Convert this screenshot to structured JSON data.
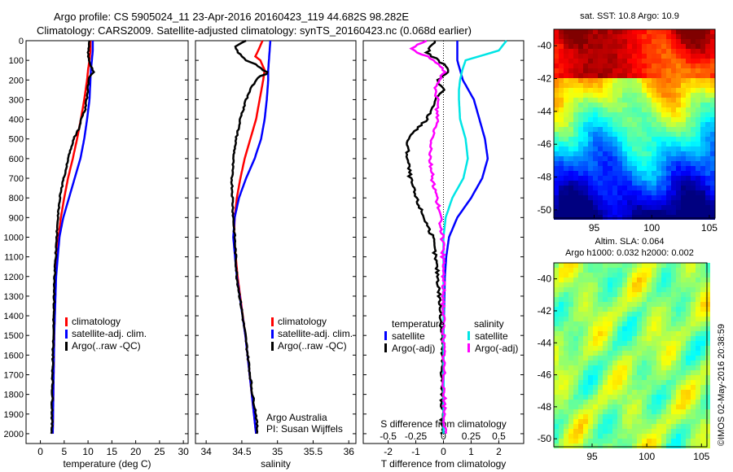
{
  "header": {
    "line1": "Argo profile: CS 5905024_11 23-Apr-2016 20160423_119 44.682S 98.282E",
    "line2": "Climatology: CARS2009. Satellite-adjusted climatology: synTS_20160423.nc (0.068d earlier)"
  },
  "side_label": "©IMOS 02-May-2016 20:38:59",
  "credit": {
    "line1": "Argo Australia",
    "line2": "PI: Susan Wijffels"
  },
  "depth_ticks": [
    0,
    100,
    200,
    300,
    400,
    500,
    600,
    700,
    800,
    900,
    1000,
    1100,
    1200,
    1300,
    1400,
    1500,
    1600,
    1700,
    1800,
    1900,
    2000
  ],
  "colors": {
    "climatology": "#ff0000",
    "satellite": "#0000ff",
    "argo": "#000000",
    "sat_salinity": "#00e5e5",
    "argo_salinity": "#ff00ff"
  },
  "chart_data": [
    {
      "type": "line",
      "xlabel": "temperature (deg C)",
      "ylabel": "",
      "xlim": [
        -3,
        31
      ],
      "ylim": [
        2050,
        0
      ],
      "xticks": [
        0,
        5,
        10,
        15,
        20,
        25,
        30
      ],
      "legend": [
        "climatology",
        "satellite-adj. clim.",
        "Argo(..raw -QC)"
      ],
      "legend_placement": "lower-center",
      "series": [
        {
          "name": "climatology",
          "depth": [
            0,
            50,
            100,
            150,
            200,
            300,
            400,
            500,
            600,
            700,
            800,
            900,
            1000,
            1200,
            1500,
            2000
          ],
          "values": [
            10.5,
            10.5,
            10.3,
            10.0,
            9.8,
            9.2,
            8.5,
            7.7,
            6.8,
            5.8,
            5.0,
            4.3,
            3.8,
            3.2,
            2.9,
            2.6
          ]
        },
        {
          "name": "satellite-adj. clim.",
          "depth": [
            0,
            50,
            100,
            150,
            200,
            300,
            400,
            500,
            600,
            700,
            800,
            900,
            1000,
            1200,
            1500,
            2000
          ],
          "values": [
            11.0,
            11.0,
            10.8,
            10.6,
            10.5,
            10.3,
            9.8,
            9.2,
            8.4,
            7.2,
            6.0,
            4.8,
            4.0,
            3.3,
            2.9,
            2.6
          ]
        },
        {
          "name": "Argo(..raw -QC)",
          "depth": [
            0,
            30,
            80,
            120,
            160,
            175,
            200,
            250,
            300,
            350,
            400,
            450,
            500,
            600,
            700,
            800,
            900,
            1000,
            1200,
            1500,
            1800,
            2000
          ],
          "values": [
            10.2,
            10.1,
            10.0,
            10.5,
            11.2,
            10.4,
            10.1,
            10.0,
            9.7,
            9.4,
            8.6,
            8.0,
            7.0,
            5.8,
            4.9,
            4.1,
            3.7,
            3.4,
            3.0,
            2.7,
            2.5,
            2.4
          ]
        }
      ]
    },
    {
      "type": "line",
      "xlabel": "salinity",
      "ylabel": "",
      "xlim": [
        33.85,
        36.1
      ],
      "ylim": [
        2050,
        0
      ],
      "xticks": [
        34,
        34.5,
        35,
        35.5,
        36
      ],
      "xtick_labels": [
        "34",
        "34.5",
        "35",
        "35.5",
        "36"
      ],
      "legend": [
        "climatology",
        "satellite-adj. clim.",
        "Argo(..raw -QC)"
      ],
      "legend_placement": "lower-right",
      "series": [
        {
          "name": "climatology",
          "depth": [
            0,
            50,
            80,
            100,
            150,
            200,
            300,
            400,
            500,
            600,
            700,
            800,
            900,
            1000,
            1200,
            1500,
            1800,
            2000
          ],
          "values": [
            34.79,
            34.73,
            34.69,
            34.76,
            34.82,
            34.8,
            34.75,
            34.7,
            34.62,
            34.54,
            34.48,
            34.43,
            34.4,
            34.39,
            34.44,
            34.55,
            34.64,
            34.7
          ]
        },
        {
          "name": "satellite-adj. clim.",
          "depth": [
            0,
            50,
            100,
            150,
            200,
            300,
            400,
            500,
            600,
            700,
            800,
            900,
            1000,
            1200,
            1500,
            1800,
            2000
          ],
          "values": [
            34.9,
            34.89,
            34.88,
            34.87,
            34.87,
            34.85,
            34.82,
            34.77,
            34.68,
            34.56,
            34.46,
            34.4,
            34.38,
            34.43,
            34.55,
            34.64,
            34.7
          ]
        },
        {
          "name": "Argo(..raw -QC)",
          "depth": [
            0,
            30,
            60,
            80,
            100,
            120,
            150,
            165,
            180,
            200,
            250,
            300,
            350,
            400,
            450,
            500,
            550,
            600,
            700,
            800,
            900,
            1000,
            1200,
            1500,
            1800,
            1900,
            2000
          ],
          "values": [
            34.55,
            34.4,
            34.45,
            34.5,
            34.56,
            34.7,
            34.8,
            34.88,
            34.75,
            34.7,
            34.62,
            34.56,
            34.52,
            34.48,
            34.45,
            34.42,
            34.4,
            34.38,
            34.36,
            34.37,
            34.38,
            34.4,
            34.43,
            34.55,
            34.65,
            34.7,
            34.72
          ]
        }
      ]
    },
    {
      "type": "line",
      "xlabel": "T difference from climatology",
      "secondary_xlabel": "S difference from climatology",
      "ylabel": "",
      "xlim": [
        -2.9,
        2.9
      ],
      "ylim": [
        2050,
        0
      ],
      "xticks": [
        -2,
        -1,
        0,
        1,
        2
      ],
      "secondary_xticks": [
        -0.5,
        -0.25,
        0,
        0.25,
        0.5
      ],
      "secondary_xtick_labels": [
        "-0.5",
        "-0.25",
        "0",
        "0.25",
        "0.5"
      ],
      "legend_groups": [
        {
          "title": "temperature",
          "entries": [
            "satellite",
            "Argo(-adj)"
          ]
        },
        {
          "title": "salinity",
          "entries": [
            "satellite",
            "Argo(-adj)"
          ]
        }
      ],
      "legend_placement": "lower-center",
      "series": [
        {
          "name": "satellite",
          "group": "temperature",
          "depth": [
            0,
            100,
            200,
            300,
            400,
            500,
            600,
            700,
            800,
            900,
            1000,
            1100,
            1200,
            1500,
            2000
          ],
          "values": [
            0.5,
            0.5,
            0.7,
            1.1,
            1.3,
            1.5,
            1.6,
            1.4,
            1.0,
            0.5,
            0.2,
            0.1,
            0.05,
            0.0,
            0.0
          ]
        },
        {
          "name": "Argo(-adj)",
          "group": "temperature",
          "depth": [
            0,
            60,
            120,
            150,
            200,
            250,
            300,
            400,
            500,
            600,
            700,
            800,
            900,
            1000,
            1200,
            1400,
            1500,
            2000
          ],
          "values": [
            -0.3,
            -0.6,
            0.0,
            0.2,
            -0.2,
            0.0,
            -0.3,
            -0.6,
            -1.3,
            -1.3,
            -1.2,
            -1.0,
            -0.7,
            -0.4,
            -0.2,
            -0.1,
            -0.05,
            -0.05
          ]
        },
        {
          "name": "satellite",
          "group": "salinity",
          "depth": [
            0,
            50,
            100,
            150,
            200,
            250,
            300,
            400,
            500,
            600,
            700,
            800,
            900,
            1000,
            1200,
            1500,
            2000
          ],
          "values": [
            0.57,
            0.5,
            0.2,
            0.17,
            0.15,
            0.14,
            0.14,
            0.15,
            0.2,
            0.22,
            0.18,
            0.08,
            0.02,
            0.0,
            0.0,
            0.0,
            0.0
          ]
        },
        {
          "name": "Argo(-adj)",
          "group": "salinity",
          "depth": [
            0,
            40,
            80,
            120,
            160,
            200,
            250,
            300,
            350,
            400,
            500,
            600,
            700,
            800,
            900,
            1000,
            1200,
            1500,
            2000
          ],
          "values": [
            -0.15,
            -0.3,
            -0.15,
            -0.05,
            0.02,
            -0.05,
            -0.08,
            -0.05,
            -0.06,
            -0.05,
            -0.1,
            -0.12,
            -0.1,
            -0.06,
            -0.03,
            -0.01,
            0.0,
            0.0,
            0.01
          ]
        }
      ]
    },
    {
      "type": "heatmap",
      "title": "sat. SST: 10.8 Argo: 10.9",
      "xlim": [
        91.5,
        105.5
      ],
      "ylim": [
        -50.5,
        -39
      ],
      "xticks": [
        95,
        100,
        105
      ],
      "yticks": [
        -40,
        -42,
        -44,
        -46,
        -48,
        -50
      ]
    },
    {
      "type": "heatmap",
      "title": "Altim. SLA: 0.064",
      "subtitle": "Argo h1000: 0.032 h2000: 0.002",
      "xlim": [
        91.5,
        105.5
      ],
      "ylim": [
        -50.5,
        -39
      ],
      "xticks": [
        95,
        100,
        105
      ],
      "yticks": [
        -40,
        -42,
        -44,
        -46,
        -48,
        -50
      ]
    }
  ]
}
